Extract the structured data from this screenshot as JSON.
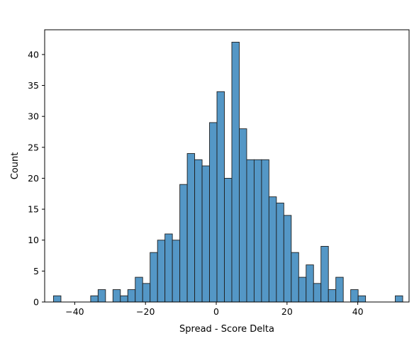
{
  "chart_data": {
    "type": "bar",
    "title": "",
    "xlabel": "Spread - Score Delta",
    "ylabel": "Count",
    "xlim": [
      -48.5,
      54.5
    ],
    "ylim": [
      0,
      44
    ],
    "grid": false,
    "bin_width": 2.1,
    "bar_color": "#5497c6",
    "edge_color": "#1f1f1f",
    "x_ticks": [
      -40,
      -20,
      0,
      20,
      40
    ],
    "x_tick_labels": [
      "−40",
      "−20",
      "0",
      "20",
      "40"
    ],
    "y_ticks": [
      0,
      5,
      10,
      15,
      20,
      25,
      30,
      35,
      40
    ],
    "y_tick_labels": [
      "0",
      "5",
      "10",
      "15",
      "20",
      "25",
      "30",
      "35",
      "40"
    ],
    "bins": [
      {
        "start": -46.0,
        "count": 1
      },
      {
        "start": -35.5,
        "count": 1
      },
      {
        "start": -33.4,
        "count": 2
      },
      {
        "start": -29.2,
        "count": 2
      },
      {
        "start": -27.1,
        "count": 1
      },
      {
        "start": -25.0,
        "count": 2
      },
      {
        "start": -22.9,
        "count": 4
      },
      {
        "start": -20.8,
        "count": 3
      },
      {
        "start": -18.7,
        "count": 8
      },
      {
        "start": -16.6,
        "count": 10
      },
      {
        "start": -14.5,
        "count": 11
      },
      {
        "start": -12.4,
        "count": 10
      },
      {
        "start": -10.3,
        "count": 19
      },
      {
        "start": -8.2,
        "count": 24
      },
      {
        "start": -6.1,
        "count": 23
      },
      {
        "start": -4.0,
        "count": 22
      },
      {
        "start": -1.9,
        "count": 29
      },
      {
        "start": 0.2,
        "count": 34
      },
      {
        "start": 2.3,
        "count": 20
      },
      {
        "start": 4.4,
        "count": 42
      },
      {
        "start": 6.5,
        "count": 28
      },
      {
        "start": 8.6,
        "count": 23
      },
      {
        "start": 10.7,
        "count": 23
      },
      {
        "start": 12.8,
        "count": 23
      },
      {
        "start": 14.9,
        "count": 17
      },
      {
        "start": 17.0,
        "count": 16
      },
      {
        "start": 19.1,
        "count": 14
      },
      {
        "start": 21.2,
        "count": 8
      },
      {
        "start": 23.3,
        "count": 4
      },
      {
        "start": 25.4,
        "count": 6
      },
      {
        "start": 27.5,
        "count": 3
      },
      {
        "start": 29.6,
        "count": 9
      },
      {
        "start": 31.7,
        "count": 2
      },
      {
        "start": 33.8,
        "count": 4
      },
      {
        "start": 38.0,
        "count": 2
      },
      {
        "start": 40.1,
        "count": 1
      },
      {
        "start": 50.6,
        "count": 1
      }
    ]
  }
}
